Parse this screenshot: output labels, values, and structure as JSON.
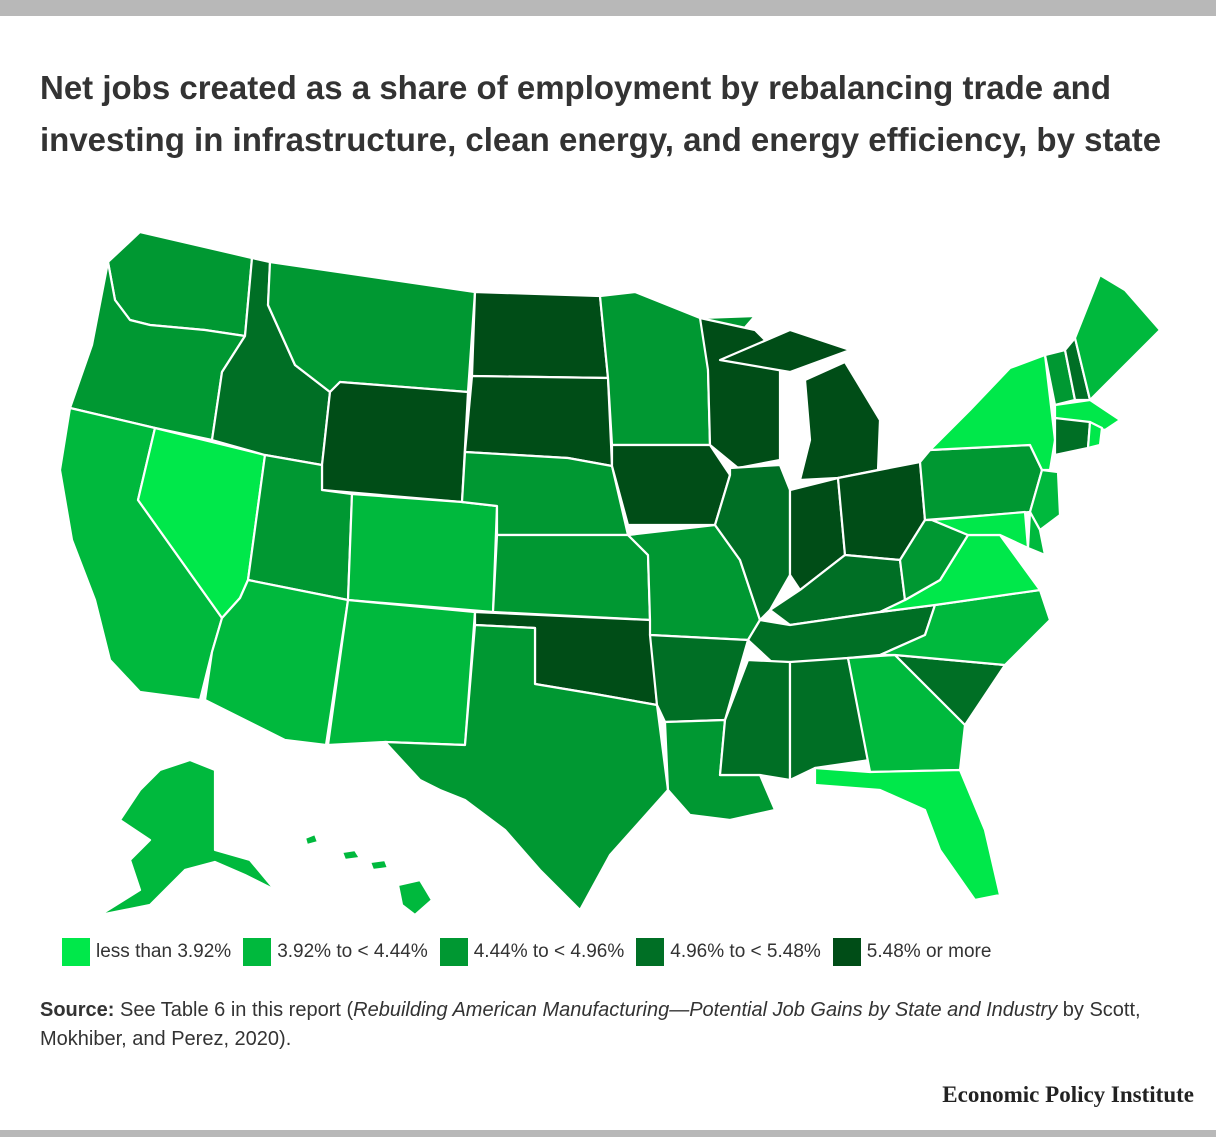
{
  "title": "Net jobs created as a share of employment by rebalancing trade and investing in infrastructure, clean energy, and energy efficiency, by state",
  "legend": [
    {
      "label": "less than 3.92%",
      "color": "#00e84a"
    },
    {
      "label": "3.92% to < 4.44%",
      "color": "#00b93d"
    },
    {
      "label": "4.44% to < 4.96%",
      "color": "#009832"
    },
    {
      "label": "4.96% to < 5.48%",
      "color": "#006f25"
    },
    {
      "label": "5.48% or more",
      "color": "#004d17"
    }
  ],
  "source": {
    "label": "Source:",
    "text1": " See Table 6 in this report (",
    "italic": "Rebuilding American Manufacturing—Potential Job Gains by State and Industry",
    "text2": " by Scott, Mokhiber, and Perez, 2020)."
  },
  "brand": "Economic Policy Institute",
  "states": {
    "WA": 3,
    "OR": 3,
    "CA": 2,
    "NV": 1,
    "ID": 4,
    "MT": 3,
    "WY": 5,
    "UT": 3,
    "CO": 2,
    "AZ": 2,
    "NM": 2,
    "ND": 5,
    "SD": 5,
    "NE": 3,
    "KS": 3,
    "OK": 5,
    "TX": 3,
    "MN": 3,
    "IA": 5,
    "MO": 3,
    "AR": 4,
    "LA": 3,
    "WI": 5,
    "IL": 4,
    "MI": 5,
    "IN": 5,
    "OH": 5,
    "KY": 4,
    "TN": 4,
    "MS": 4,
    "AL": 4,
    "GA": 2,
    "FL": 1,
    "SC": 4,
    "NC": 2,
    "VA": 1,
    "WV": 3,
    "PA": 3,
    "NY": 1,
    "VT": 3,
    "NH": 4,
    "ME": 2,
    "MA": 1,
    "RI": 1,
    "CT": 4,
    "NJ": 2,
    "DE": 2,
    "MD": 1,
    "AK": 2,
    "HI": 2
  }
}
